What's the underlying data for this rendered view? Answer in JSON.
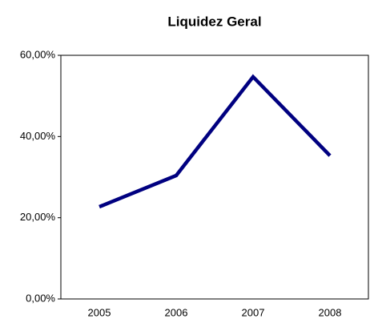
{
  "chart_data": {
    "type": "line",
    "title": "Liquidez Geral",
    "categories": [
      "2005",
      "2006",
      "2007",
      "2008"
    ],
    "values": [
      22.7,
      30.4,
      54.7,
      35.3
    ],
    "color": "#000080",
    "ylim": [
      0,
      60
    ],
    "yticks": [
      {
        "value": 0,
        "label": "0,00%"
      },
      {
        "value": 20,
        "label": "20,00%"
      },
      {
        "value": 40,
        "label": "40,00%"
      },
      {
        "value": 60,
        "label": "60,00%"
      }
    ],
    "grid": false
  }
}
